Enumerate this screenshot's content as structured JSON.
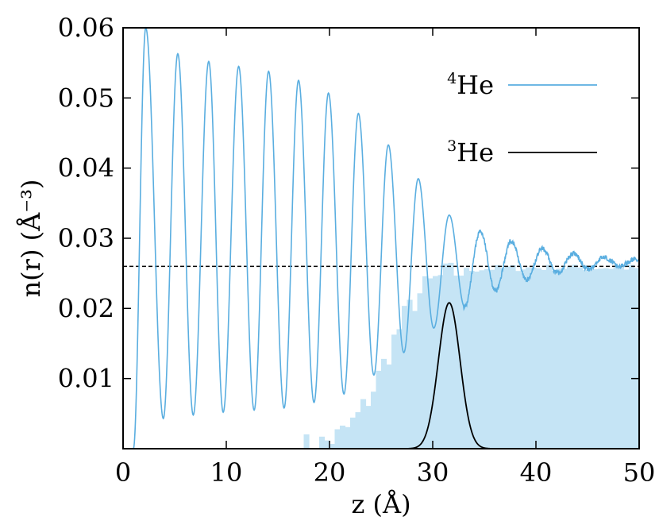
{
  "chart_data": {
    "type": "line",
    "xlabel": "z (Å)",
    "ylabel": "n(r) (Å⁻³)",
    "xlim": [
      0,
      50
    ],
    "ylim": [
      0,
      0.06
    ],
    "x_ticks": [
      "0",
      "10",
      "20",
      "30",
      "40",
      "50"
    ],
    "y_ticks": [
      "0.01",
      "0.02",
      "0.03",
      "0.04",
      "0.05",
      "0.06"
    ],
    "x_tick_values": [
      0,
      10,
      20,
      30,
      40,
      50
    ],
    "y_tick_values": [
      0.01,
      0.02,
      0.03,
      0.04,
      0.05,
      0.06
    ],
    "reference_line": {
      "y": 0.026,
      "style": "dashed"
    },
    "legend_position": "top-right",
    "series": [
      {
        "name": "4He",
        "name_parts": {
          "sup": "4",
          "base": "He"
        },
        "color": "#5aaee0",
        "kind": "oscillating-density",
        "onset_x": 1.0,
        "period": 2.95,
        "peaks": [
          [
            2.2,
            0.06
          ],
          [
            5.3,
            0.0563
          ],
          [
            8.3,
            0.0552
          ],
          [
            11.2,
            0.0545
          ],
          [
            14.1,
            0.0538
          ],
          [
            17.0,
            0.0525
          ],
          [
            19.9,
            0.0507
          ],
          [
            22.8,
            0.0478
          ],
          [
            25.7,
            0.0433
          ],
          [
            28.6,
            0.0385
          ],
          [
            31.6,
            0.0333
          ],
          [
            34.6,
            0.031
          ],
          [
            37.6,
            0.0296
          ],
          [
            40.6,
            0.0285
          ],
          [
            43.6,
            0.0278
          ],
          [
            46.6,
            0.0273
          ],
          [
            49.6,
            0.027
          ]
        ],
        "troughs": [
          [
            3.9,
            0.0043
          ],
          [
            6.8,
            0.0048
          ],
          [
            9.7,
            0.0052
          ],
          [
            12.7,
            0.0055
          ],
          [
            15.6,
            0.0058
          ],
          [
            18.5,
            0.0066
          ],
          [
            21.4,
            0.0078
          ],
          [
            24.3,
            0.0105
          ],
          [
            27.2,
            0.0137
          ],
          [
            30.1,
            0.0172
          ],
          [
            33.1,
            0.0202
          ],
          [
            36.1,
            0.0225
          ],
          [
            39.1,
            0.024
          ],
          [
            42.1,
            0.025
          ],
          [
            45.1,
            0.0256
          ],
          [
            48.1,
            0.026
          ]
        ]
      },
      {
        "name": "3He",
        "name_parts": {
          "sup": "3",
          "base": "He"
        },
        "color": "#000000",
        "kind": "gaussian",
        "center": 31.6,
        "sigma": 1.05,
        "peak": 0.0208
      }
    ],
    "filled_histogram": {
      "color": "#c5e4f5",
      "bin_width": 0.5,
      "start": 16.0,
      "midpoint": 25.5,
      "slope": 0.55,
      "plateau": 0.0258,
      "onset_x": 17.2
    }
  }
}
